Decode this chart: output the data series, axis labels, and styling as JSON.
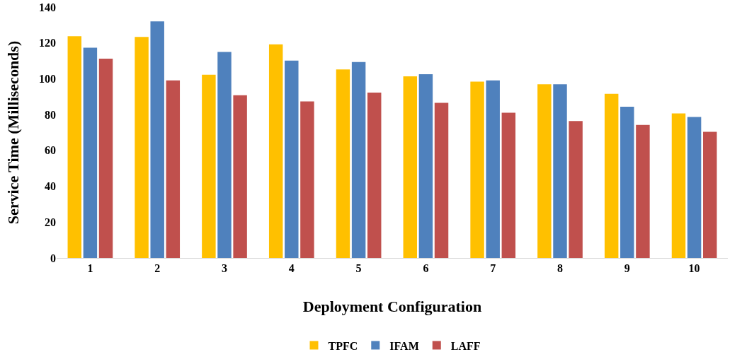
{
  "chart_data": {
    "type": "bar",
    "xlabel": "Deployment Configuration",
    "ylabel": "Service Time (Milliseconds)",
    "categories": [
      "1",
      "2",
      "3",
      "4",
      "5",
      "6",
      "7",
      "8",
      "9",
      "10"
    ],
    "series": [
      {
        "name": "TPFC",
        "color": "#ffc000",
        "values": [
          123.7,
          123.3,
          102.2,
          119.2,
          105.2,
          101.4,
          98.4,
          96.9,
          91.6,
          80.6
        ]
      },
      {
        "name": "IFAM",
        "color": "#4f81bd",
        "values": [
          117.3,
          132,
          115,
          110.1,
          109.3,
          102.5,
          99.1,
          96.9,
          84.4,
          78.7
        ]
      },
      {
        "name": "LAFF",
        "color": "#c0504d",
        "values": [
          111.2,
          99.1,
          90.8,
          87.4,
          92.3,
          86.6,
          81,
          76.4,
          74.2,
          70.4
        ]
      }
    ],
    "ylim": [
      0,
      140
    ],
    "yticks": [
      0,
      20,
      40,
      60,
      80,
      100,
      120,
      140
    ],
    "grid": false,
    "legend": "bottom"
  }
}
